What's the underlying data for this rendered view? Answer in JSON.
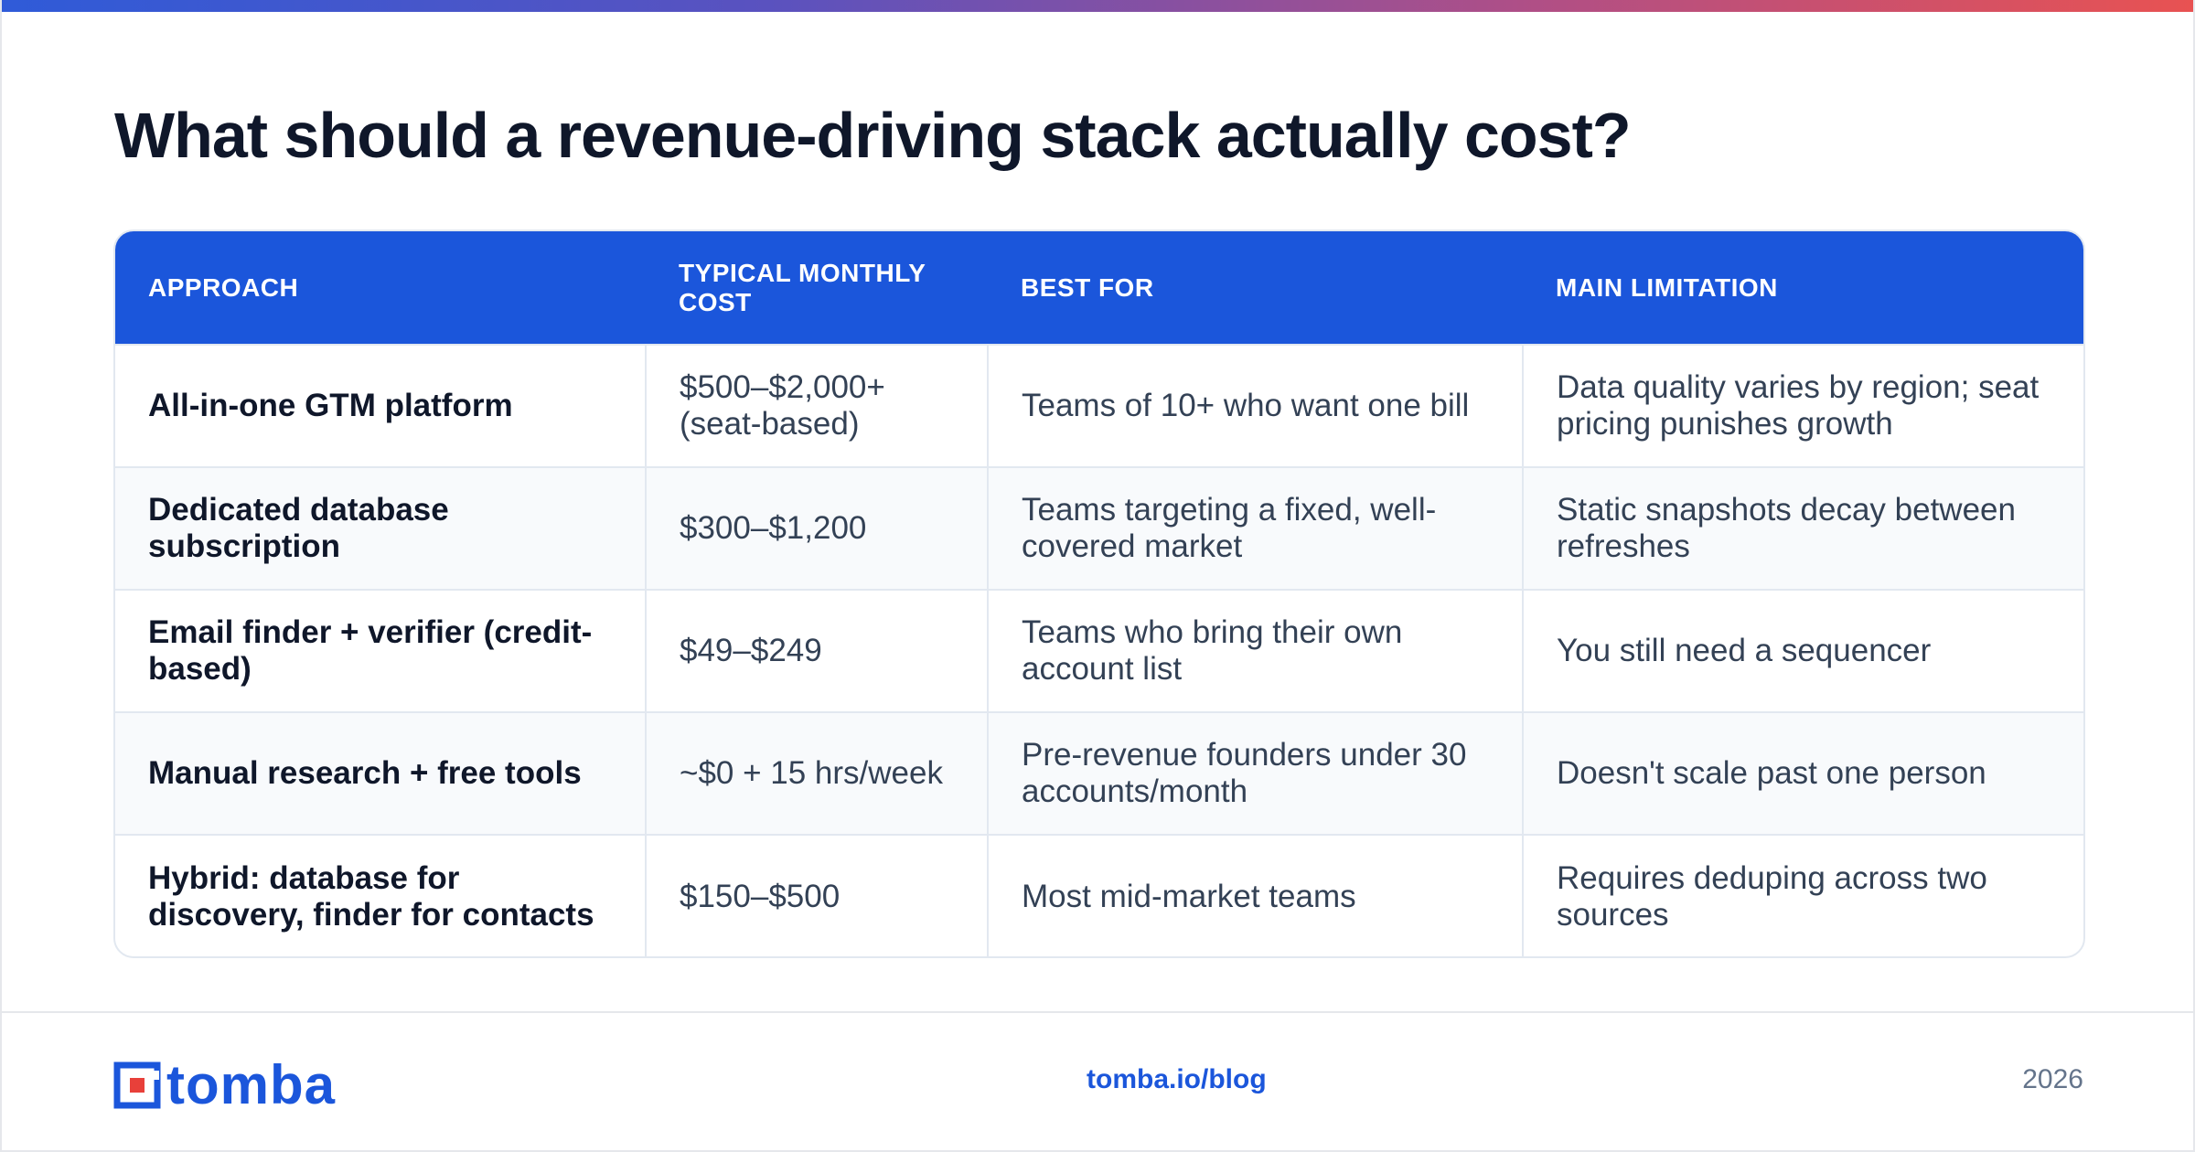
{
  "title": "What should a revenue-driving stack actually cost?",
  "table": {
    "headers": [
      "APPROACH",
      "TYPICAL MONTHLY COST",
      "BEST FOR",
      "MAIN LIMITATION"
    ],
    "rows": [
      [
        "All-in-one GTM platform",
        "$500–$2,000+ (seat-based)",
        "Teams of 10+ who want one bill",
        "Data quality varies by region; seat pricing punishes growth"
      ],
      [
        "Dedicated database subscription",
        "$300–$1,200",
        "Teams targeting a fixed, well-covered market",
        "Static snapshots decay between refreshes"
      ],
      [
        "Email finder + verifier (credit-based)",
        "$49–$249",
        "Teams who bring their own account list",
        "You still need a sequencer"
      ],
      [
        "Manual research + free tools",
        "~$0 + 15 hrs/week",
        "Pre-revenue founders under 30 accounts/month",
        "Doesn't scale past one person"
      ],
      [
        "Hybrid: database for discovery, finder for contacts",
        "$150–$500",
        "Most mid-market teams",
        "Requires deduping across two sources"
      ]
    ]
  },
  "footer": {
    "logo_text": "tomba",
    "link": "tomba.io/blog",
    "year": "2026"
  },
  "colors": {
    "accent": "#1b56db",
    "title": "#0f172a",
    "body_text": "#334155",
    "muted": "#64748b",
    "alt_row": "#f8fafc",
    "border": "#e2e8f0",
    "logo_red": "#e8403a"
  },
  "icons": {
    "logo": "tomba-logo-icon"
  }
}
